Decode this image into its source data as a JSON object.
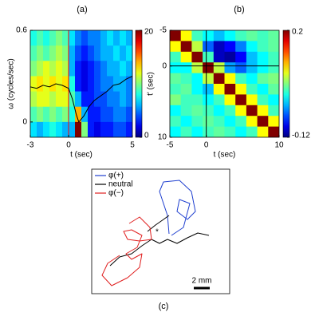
{
  "chart_data": [
    {
      "type": "heatmap",
      "title": "(a)",
      "xlabel": "t (sec)",
      "ylabel": "ω (cycles/sec)",
      "colormap": "jet",
      "x": [
        -2.75,
        -2.25,
        -1.75,
        -1.25,
        -0.75,
        -0.25,
        0.25,
        0.75,
        1.25,
        1.75,
        2.25,
        2.75,
        3.25,
        3.75,
        4.25,
        4.75
      ],
      "y": [
        0.55,
        0.45,
        0.35,
        0.25,
        0.15,
        0.05,
        -0.05
      ],
      "z": [
        [
          8,
          9,
          8,
          9,
          10,
          9,
          7,
          5,
          4,
          5,
          5,
          6,
          7,
          6,
          7,
          6
        ],
        [
          9,
          10,
          9,
          10,
          11,
          10,
          6,
          4,
          3,
          4,
          5,
          6,
          6,
          7,
          6,
          7
        ],
        [
          10,
          11,
          12,
          11,
          12,
          11,
          6,
          3,
          2,
          3,
          4,
          5,
          6,
          6,
          7,
          6
        ],
        [
          12,
          13,
          12,
          13,
          12,
          13,
          8,
          3,
          2,
          3,
          4,
          5,
          5,
          6,
          6,
          5
        ],
        [
          11,
          12,
          12,
          11,
          12,
          12,
          9,
          6,
          3,
          3,
          4,
          4,
          5,
          5,
          6,
          5
        ],
        [
          9,
          10,
          9,
          10,
          9,
          10,
          8,
          14,
          6,
          3,
          3,
          4,
          4,
          5,
          5,
          4
        ],
        [
          7,
          6,
          7,
          8,
          7,
          6,
          6,
          20,
          10,
          3,
          2,
          3,
          3,
          4,
          4,
          3
        ]
      ],
      "xlim": [
        -3,
        5
      ],
      "ylim": [
        -0.1,
        0.6
      ],
      "xticks": [
        -3,
        0,
        5
      ],
      "yticks": [
        0,
        0.6
      ],
      "clim": [
        0,
        20
      ],
      "cticks": [
        0,
        20
      ],
      "line": {
        "color": "#000000",
        "x": [
          -3,
          -2.5,
          -2,
          -1.5,
          -1,
          -0.5,
          0,
          0.3,
          0.6,
          0.8,
          1.2,
          1.6,
          2,
          2.5,
          3,
          3.5,
          4,
          4.5,
          5
        ],
        "y": [
          0.23,
          0.22,
          0.24,
          0.23,
          0.25,
          0.24,
          0.22,
          0.15,
          0.05,
          0.0,
          0.04,
          0.1,
          0.14,
          0.17,
          0.2,
          0.24,
          0.25,
          0.28,
          0.3
        ]
      },
      "reference_lines": {
        "x": 0,
        "color": "#ff0000"
      }
    },
    {
      "type": "heatmap",
      "title": "(b)",
      "xlabel": "t (sec)",
      "ylabel": "t' (sec)",
      "colormap": "jet",
      "x": [
        -4.25,
        -2.75,
        -1.25,
        0.25,
        1.75,
        3.25,
        4.75,
        6.25,
        7.75,
        9.25
      ],
      "y": [
        -4.25,
        -2.75,
        -1.25,
        0.25,
        1.75,
        3.25,
        4.75,
        6.25,
        7.75,
        9.25
      ],
      "z": [
        [
          0.2,
          0.08,
          0.02,
          0.0,
          -0.02,
          0.0,
          0.02,
          0.03,
          0.02,
          0.03
        ],
        [
          0.08,
          0.2,
          0.06,
          -0.05,
          -0.1,
          -0.08,
          -0.04,
          0.0,
          0.02,
          0.03
        ],
        [
          0.02,
          0.08,
          0.2,
          0.02,
          -0.1,
          -0.11,
          -0.08,
          -0.02,
          0.0,
          0.02
        ],
        [
          0.0,
          0.0,
          0.06,
          0.2,
          0.06,
          -0.03,
          -0.05,
          -0.02,
          0.0,
          0.02
        ],
        [
          0.03,
          0.02,
          0.0,
          0.06,
          0.2,
          0.08,
          0.02,
          0.0,
          0.03,
          0.04
        ],
        [
          0.02,
          0.03,
          0.0,
          -0.02,
          0.08,
          0.2,
          0.08,
          0.02,
          0.0,
          0.03
        ],
        [
          0.04,
          0.02,
          0.02,
          0.0,
          0.02,
          0.08,
          0.2,
          0.08,
          0.02,
          0.0
        ],
        [
          0.0,
          0.02,
          0.03,
          0.02,
          0.0,
          0.02,
          0.08,
          0.2,
          0.08,
          0.02
        ],
        [
          0.02,
          0.0,
          0.02,
          0.03,
          0.02,
          0.0,
          0.02,
          0.08,
          0.2,
          0.08
        ],
        [
          0.0,
          0.02,
          0.0,
          0.02,
          0.03,
          0.02,
          0.0,
          0.02,
          0.08,
          0.2
        ]
      ],
      "xlim": [
        -5,
        10
      ],
      "ylim": [
        10,
        -5
      ],
      "xticks": [
        -5,
        0,
        10
      ],
      "yticks": [
        -5,
        0,
        10
      ],
      "clim": [
        -0.12,
        0.2
      ],
      "cticks": [
        -0.12,
        0.2
      ],
      "reference_lines": {
        "x": 0,
        "y": 0,
        "color": "#000000"
      }
    },
    {
      "type": "trajectory",
      "title": "(c)",
      "legend": "top-left",
      "annotations": [
        "*"
      ],
      "scale_bar": {
        "length": 2,
        "label": "2 mm"
      },
      "series": [
        {
          "name": "φ(+)",
          "color": "#2040d0",
          "x": [
            9.7,
            9.5,
            8.5,
            9.0,
            11.0,
            12.5,
            13.0,
            12.0,
            10.7,
            11.0,
            12.3,
            11.5,
            10.0
          ],
          "y": [
            7.5,
            9.8,
            12.8,
            14.0,
            14.2,
            12.8,
            10.3,
            9.3,
            10.3,
            11.8,
            11.3,
            8.3,
            7.3
          ]
        },
        {
          "name": "neutral",
          "color": "#000000",
          "x": [
            2.3,
            3.5,
            5.0,
            6.3,
            7.5,
            8.5,
            9.5,
            10.7,
            12.0,
            13.3,
            14.7,
            null,
            7.0,
            8.0,
            9.0,
            9.7
          ],
          "y": [
            3.5,
            4.6,
            5.0,
            6.0,
            6.8,
            6.3,
            6.8,
            6.3,
            7.0,
            7.6,
            7.3,
            null,
            7.8,
            8.6,
            9.3,
            9.8
          ]
        },
        {
          "name": "φ(−)",
          "color": "#e02020",
          "x": [
            4.7,
            6.0,
            7.3,
            7.5,
            6.0,
            4.5,
            4.0,
            5.0,
            6.3,
            5.7,
            4.3,
            5.0,
            6.3,
            6.0,
            4.5,
            2.5,
            1.3,
            2.0,
            3.5
          ],
          "y": [
            8.8,
            9.6,
            8.3,
            6.8,
            6.6,
            6.8,
            7.8,
            8.0,
            7.3,
            5.8,
            5.0,
            4.3,
            5.0,
            3.3,
            2.0,
            1.0,
            2.3,
            3.8,
            4.8
          ]
        }
      ]
    }
  ]
}
